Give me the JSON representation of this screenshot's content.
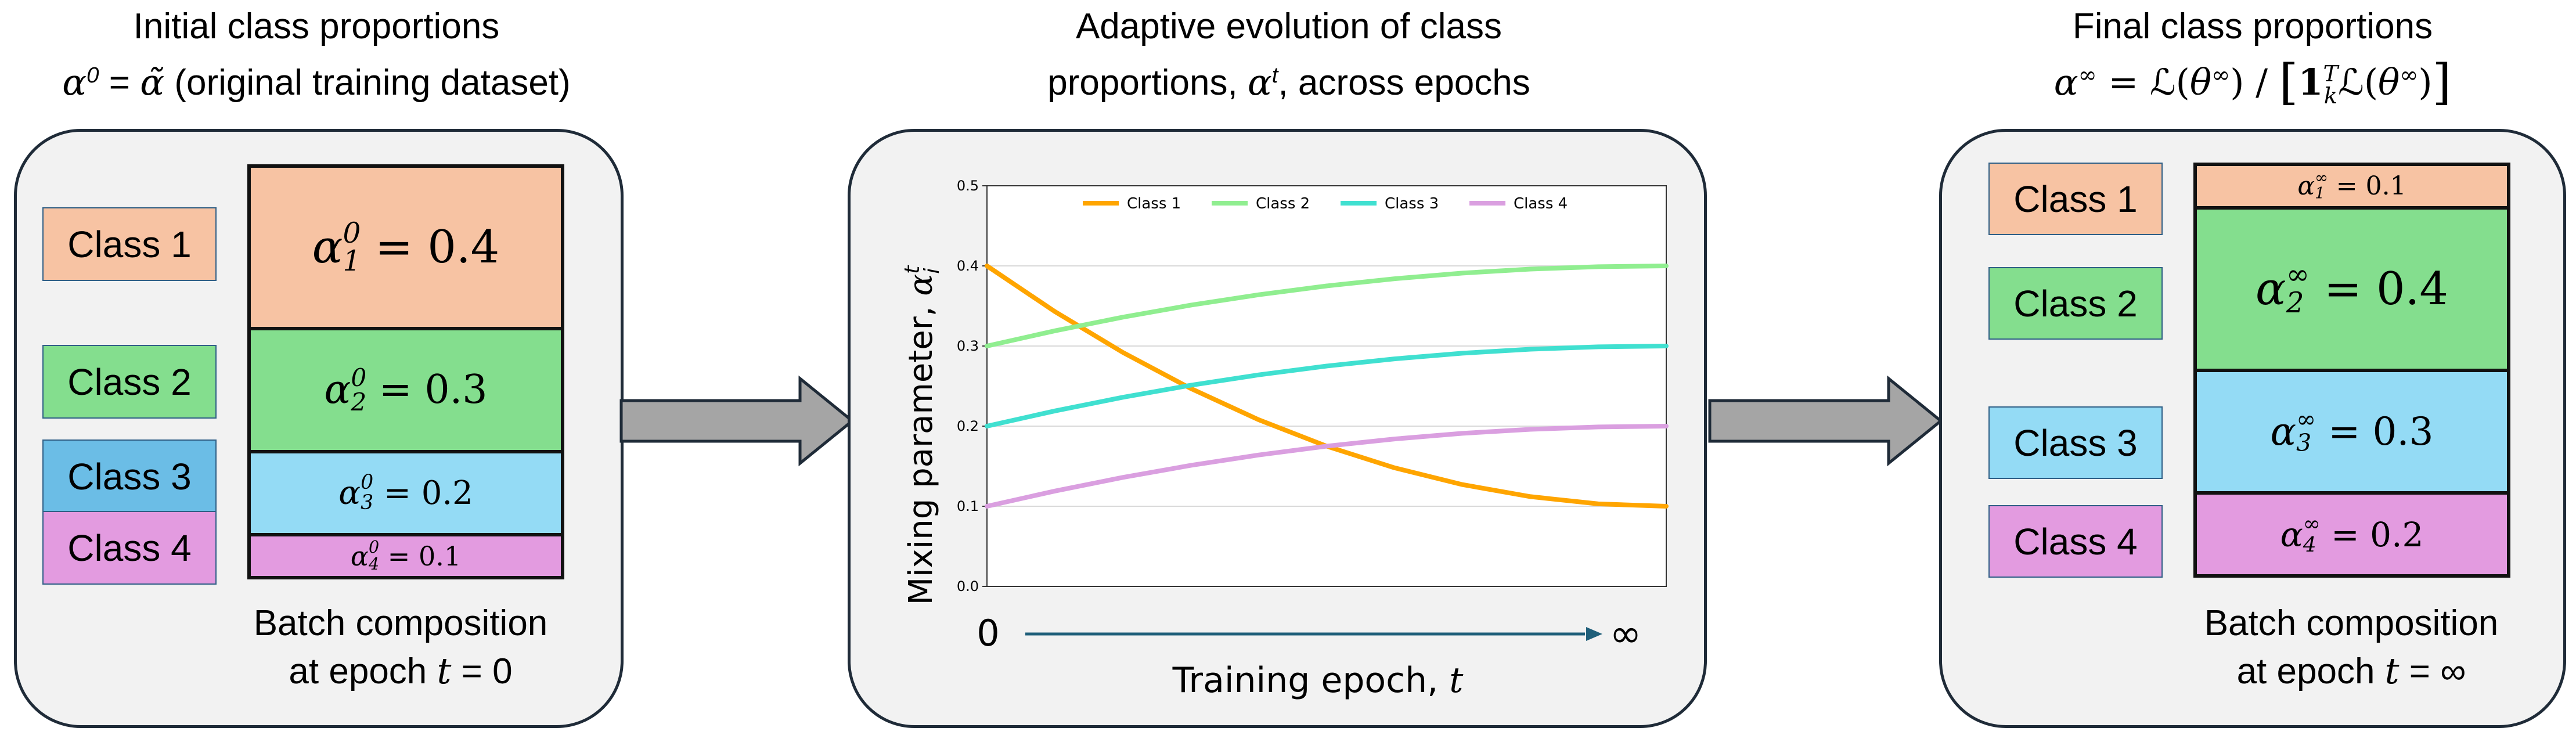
{
  "left": {
    "title_line1": "Initial class proportions",
    "title_alpha": "α",
    "title_sup": "0",
    "title_eq": " = ",
    "title_tilde": "α̃",
    "title_rest": " (original training dataset)",
    "classes": [
      "Class 1",
      "Class 2",
      "Class 3",
      "Class 4"
    ],
    "segments": [
      {
        "sup": "0",
        "sub": "1",
        "value": "0.4",
        "proportion": 0.4,
        "color": "#f7c3a3"
      },
      {
        "sup": "0",
        "sub": "2",
        "value": "0.3",
        "proportion": 0.3,
        "color": "#84de8e"
      },
      {
        "sup": "0",
        "sub": "3",
        "value": "0.2",
        "proportion": 0.2,
        "color": "#94dbf5"
      },
      {
        "sup": "0",
        "sub": "4",
        "value": "0.1",
        "proportion": 0.1,
        "color": "#e39be0"
      }
    ],
    "caption_line1": "Batch composition",
    "caption_prefix": "at epoch ",
    "caption_var": "t",
    "caption_eq": " = 0"
  },
  "middle": {
    "title_line1": "Adaptive evolution of class",
    "title_prefix": "proportions, ",
    "title_alpha": "α",
    "title_sup": "t",
    "title_suffix": ", across epochs",
    "x_start": "0",
    "x_end": "∞",
    "xlabel_prefix": "Training epoch, ",
    "xlabel_var": "t"
  },
  "right": {
    "title_line1": "Final class proportions",
    "formula": {
      "alpha": "α",
      "sup_inf": "∞",
      "eq": " = ",
      "L": "ℒ",
      "theta": "θ",
      "slash": " / ",
      "lbr": "[",
      "rbr": "]",
      "one": "1",
      "sup_T": "T",
      "sub_k": "k"
    },
    "classes": [
      "Class 1",
      "Class 2",
      "Class 3",
      "Class 4"
    ],
    "segments": [
      {
        "sup": "∞",
        "sub": "1",
        "value": "0.1",
        "proportion": 0.1,
        "color": "#f7c3a3"
      },
      {
        "sup": "∞",
        "sub": "2",
        "value": "0.4",
        "proportion": 0.4,
        "color": "#84de8e"
      },
      {
        "sup": "∞",
        "sub": "3",
        "value": "0.3",
        "proportion": 0.3,
        "color": "#94dbf5"
      },
      {
        "sup": "∞",
        "sub": "4",
        "value": "0.2",
        "proportion": 0.2,
        "color": "#e39be0"
      }
    ],
    "caption_line1": "Batch composition",
    "caption_prefix": "at epoch ",
    "caption_var": "t",
    "caption_eq": " = ∞"
  },
  "colors": {
    "class1": "#f7c3a3",
    "class2": "#84de8e",
    "class3_left": "#6bbde6",
    "class3": "#94dbf5",
    "class4": "#e39be0",
    "arrow_fill": "#a5a5a5",
    "arrow_stroke": "#1f2b38",
    "axis_arrow": "#1f5f7a"
  },
  "chart_data": {
    "type": "line",
    "title": "",
    "xlabel": "Training epoch, t",
    "ylabel": "Mixing parameter, α_i^t",
    "ylim": [
      0.0,
      0.5
    ],
    "xlim": [
      0,
      1
    ],
    "yticks": [
      "0.0",
      "0.1",
      "0.2",
      "0.3",
      "0.4",
      "0.5"
    ],
    "grid": "horizontal",
    "legend_position": "top",
    "ylabel_prefix": "Mixing parameter, ",
    "ylabel_alpha": "α",
    "ylabel_sup": "t",
    "ylabel_sub": "i",
    "x": [
      0,
      0.1,
      0.2,
      0.3,
      0.4,
      0.5,
      0.6,
      0.7,
      0.8,
      0.9,
      1.0
    ],
    "series": [
      {
        "name": "Class 1",
        "color": "#ffa500",
        "values": [
          0.4,
          0.343,
          0.292,
          0.247,
          0.208,
          0.175,
          0.148,
          0.127,
          0.112,
          0.103,
          0.1
        ]
      },
      {
        "name": "Class 2",
        "color": "#90ee90",
        "values": [
          0.3,
          0.319,
          0.336,
          0.351,
          0.364,
          0.375,
          0.384,
          0.391,
          0.396,
          0.399,
          0.4
        ]
      },
      {
        "name": "Class 3",
        "color": "#40e0d0",
        "values": [
          0.2,
          0.219,
          0.236,
          0.251,
          0.264,
          0.275,
          0.284,
          0.291,
          0.296,
          0.299,
          0.3
        ]
      },
      {
        "name": "Class 4",
        "color": "#da9fe0",
        "values": [
          0.1,
          0.119,
          0.136,
          0.151,
          0.164,
          0.175,
          0.184,
          0.191,
          0.196,
          0.199,
          0.2
        ]
      }
    ]
  }
}
